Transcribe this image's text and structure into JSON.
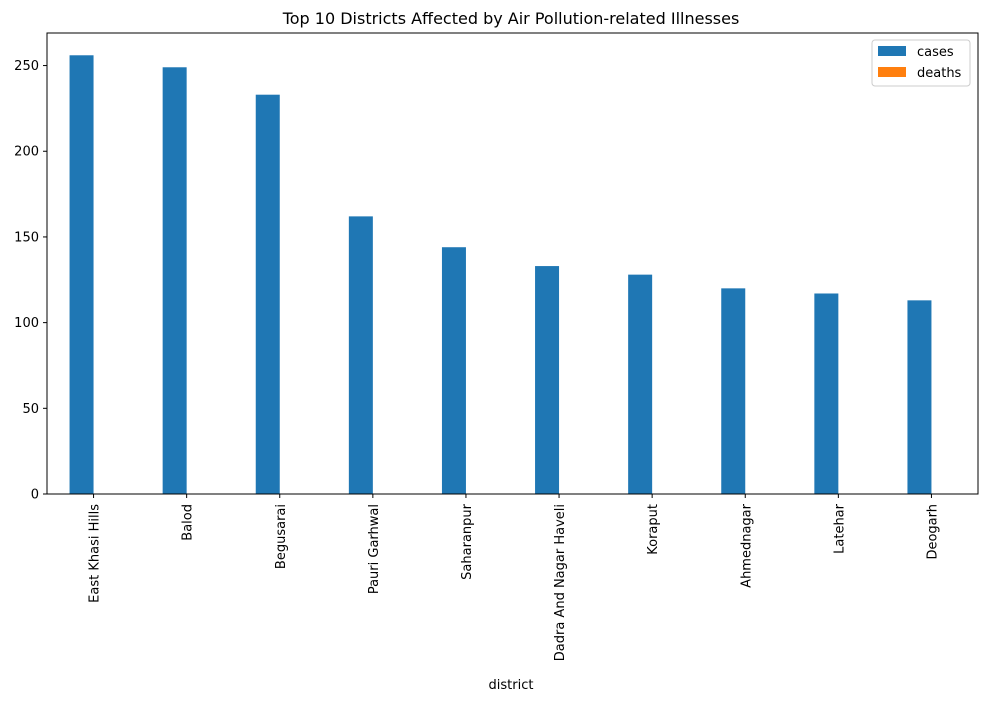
{
  "chart_data": {
    "type": "bar",
    "title": "Top 10 Districts Affected by Air Pollution-related Illnesses",
    "xlabel": "district",
    "ylabel": "",
    "categories": [
      "East Khasi Hills",
      "Balod",
      "Begusarai",
      "Pauri Garhwal",
      "Saharanpur",
      "Dadra And Nagar Haveli",
      "Koraput",
      "Ahmednagar",
      "Latehar",
      "Deogarh"
    ],
    "series": [
      {
        "name": "cases",
        "color": "#1f77b4",
        "values": [
          256,
          249,
          233,
          162,
          144,
          133,
          128,
          120,
          117,
          113
        ]
      },
      {
        "name": "deaths",
        "color": "#ff7f0e",
        "values": [
          0,
          0,
          0,
          0,
          0,
          0,
          0,
          0,
          0,
          0
        ]
      }
    ],
    "ylim": [
      0,
      269
    ],
    "yticks": [
      0,
      50,
      100,
      150,
      200,
      250
    ],
    "legend": "top-right",
    "grid": false
  }
}
